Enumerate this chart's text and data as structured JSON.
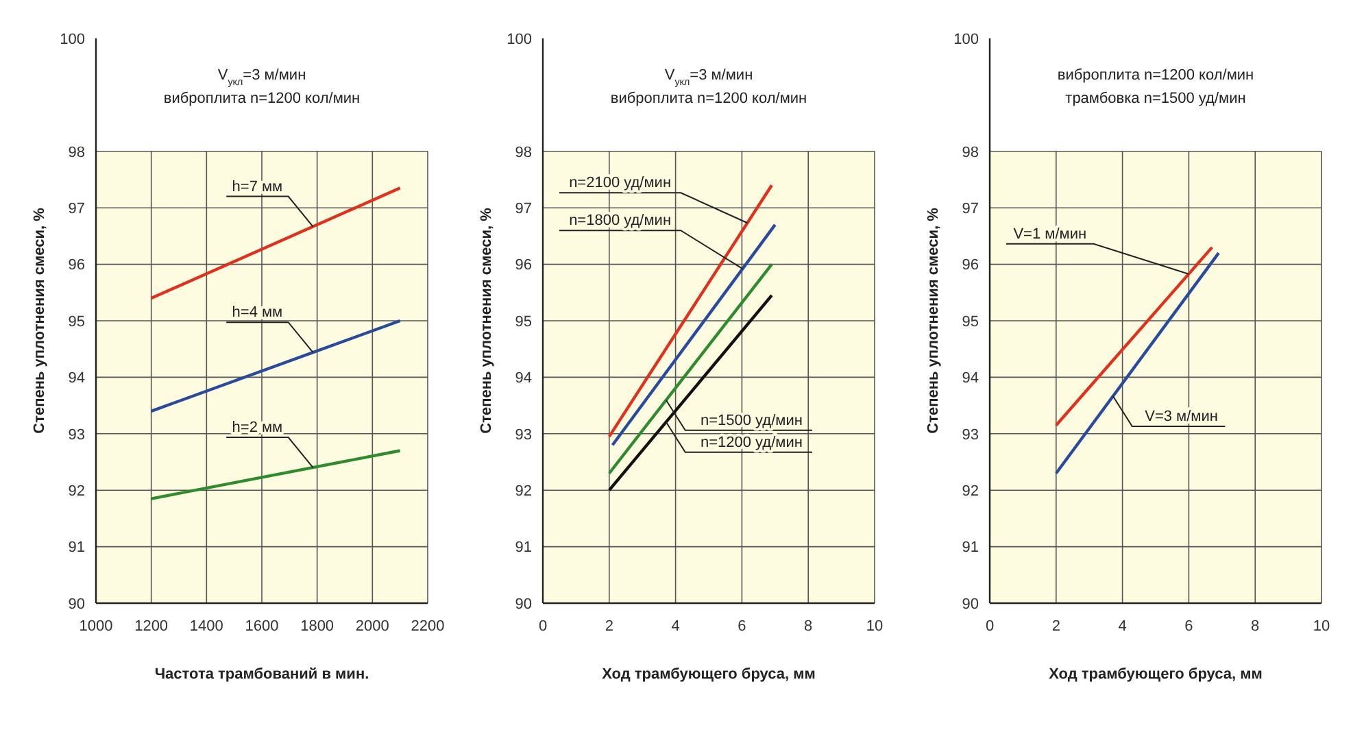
{
  "chart_data": [
    {
      "type": "line",
      "title": "V$_{укл}$=3 м/мин",
      "subtitle": "виброплита n=1200 кол/мин",
      "xlabel": "Частота трамбований в мин.",
      "ylabel": "Степень уплотнения смеси, %",
      "xlim": [
        1000,
        2200
      ],
      "xticks": [
        1000,
        1200,
        1400,
        1600,
        1800,
        2000,
        2200
      ],
      "ylim": [
        90,
        100
      ],
      "yticks": [
        90,
        91,
        92,
        93,
        94,
        95,
        96,
        97,
        98,
        100
      ],
      "grid": true,
      "legend": false,
      "marker": "none",
      "line_style": "solid",
      "bands": [
        {
          "axis": "y",
          "from": 90,
          "to": 98,
          "color": "#fdfbe0"
        }
      ],
      "series": [
        {
          "name": "h=7 мм",
          "color": "#e0301e",
          "x": [
            1200,
            2100
          ],
          "values": [
            95.4,
            97.35
          ]
        },
        {
          "name": "h=4 мм",
          "color": "#2a4a9a",
          "x": [
            1200,
            2100
          ],
          "values": [
            93.4,
            95.0
          ]
        },
        {
          "name": "h=2 мм",
          "color": "#2e8b2e",
          "x": [
            1200,
            2100
          ],
          "values": [
            91.85,
            92.7
          ]
        }
      ]
    },
    {
      "type": "line",
      "title": "V$_{укл}$=3 м/мин",
      "subtitle": "виброплита n=1200 кол/мин",
      "xlabel": "Ход трамбующего бруса, мм",
      "ylabel": "Степень уплотнения смеси, %",
      "xlim": [
        0,
        10
      ],
      "xticks": [
        0,
        2,
        4,
        6,
        8,
        10
      ],
      "ylim": [
        90,
        100
      ],
      "yticks": [
        90,
        91,
        92,
        93,
        94,
        95,
        96,
        97,
        98,
        100
      ],
      "grid": true,
      "legend": false,
      "marker": "none",
      "line_style": "solid",
      "bands": [
        {
          "axis": "y",
          "from": 90,
          "to": 98,
          "color": "#fdfbe0"
        }
      ],
      "series": [
        {
          "name": "n=2100 уд/мин",
          "color": "#e0301e",
          "x": [
            2,
            6.9
          ],
          "values": [
            92.95,
            97.4
          ]
        },
        {
          "name": "n=1800 уд/мин",
          "color": "#2a4a9a",
          "x": [
            2.1,
            7
          ],
          "values": [
            92.8,
            96.7
          ]
        },
        {
          "name": "n=1500 уд/мин",
          "color": "#2e8b2e",
          "x": [
            2,
            6.9
          ],
          "values": [
            92.3,
            96.0
          ]
        },
        {
          "name": "n=1200 уд/мин",
          "color": "#111111",
          "x": [
            2,
            6.9
          ],
          "values": [
            92.0,
            95.45
          ]
        }
      ]
    },
    {
      "type": "line",
      "title": "виброплита n=1200 кол/мин",
      "subtitle": "трамбовка n=1500 уд/мин",
      "xlabel": "Ход трамбующего бруса, мм",
      "ylabel": "Степень уплотнения смеси, %",
      "xlim": [
        0,
        10
      ],
      "xticks": [
        0,
        2,
        4,
        6,
        8,
        10
      ],
      "ylim": [
        90,
        100
      ],
      "yticks": [
        90,
        91,
        92,
        93,
        94,
        95,
        96,
        97,
        98,
        100
      ],
      "grid": true,
      "legend": false,
      "marker": "none",
      "line_style": "solid",
      "bands": [
        {
          "axis": "y",
          "from": 90,
          "to": 98,
          "color": "#fdfbe0"
        }
      ],
      "series": [
        {
          "name": "V=1 м/мин",
          "color": "#e0301e",
          "x": [
            2,
            6.7
          ],
          "values": [
            93.15,
            96.3
          ]
        },
        {
          "name": "V=3 м/мин",
          "color": "#2a4a9a",
          "x": [
            2,
            6.9
          ],
          "values": [
            92.3,
            96.2
          ]
        }
      ]
    }
  ]
}
